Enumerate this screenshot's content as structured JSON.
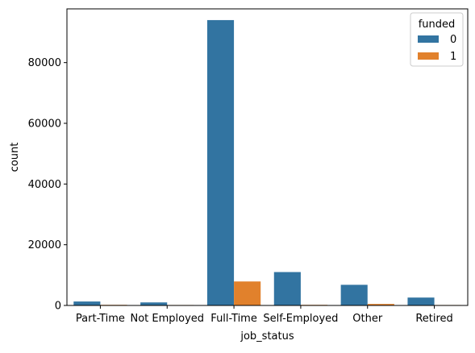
{
  "chart_data": {
    "type": "bar",
    "xlabel": "job_status",
    "ylabel": "count",
    "categories": [
      "Part-Time",
      "Not Employed",
      "Full-Time",
      "Self-Employed",
      "Other",
      "Retired"
    ],
    "series": [
      {
        "name": "0",
        "color": "#3274a1",
        "values": [
          1300,
          1000,
          94000,
          11000,
          6800,
          2600
        ]
      },
      {
        "name": "1",
        "color": "#e1812c",
        "values": [
          200,
          150,
          7900,
          200,
          500,
          150
        ]
      }
    ],
    "ylim": [
      0,
      97700
    ],
    "yticks": [
      0,
      20000,
      40000,
      60000,
      80000
    ],
    "grid": false,
    "legend": {
      "title": "funded",
      "placement": "top-right"
    }
  }
}
